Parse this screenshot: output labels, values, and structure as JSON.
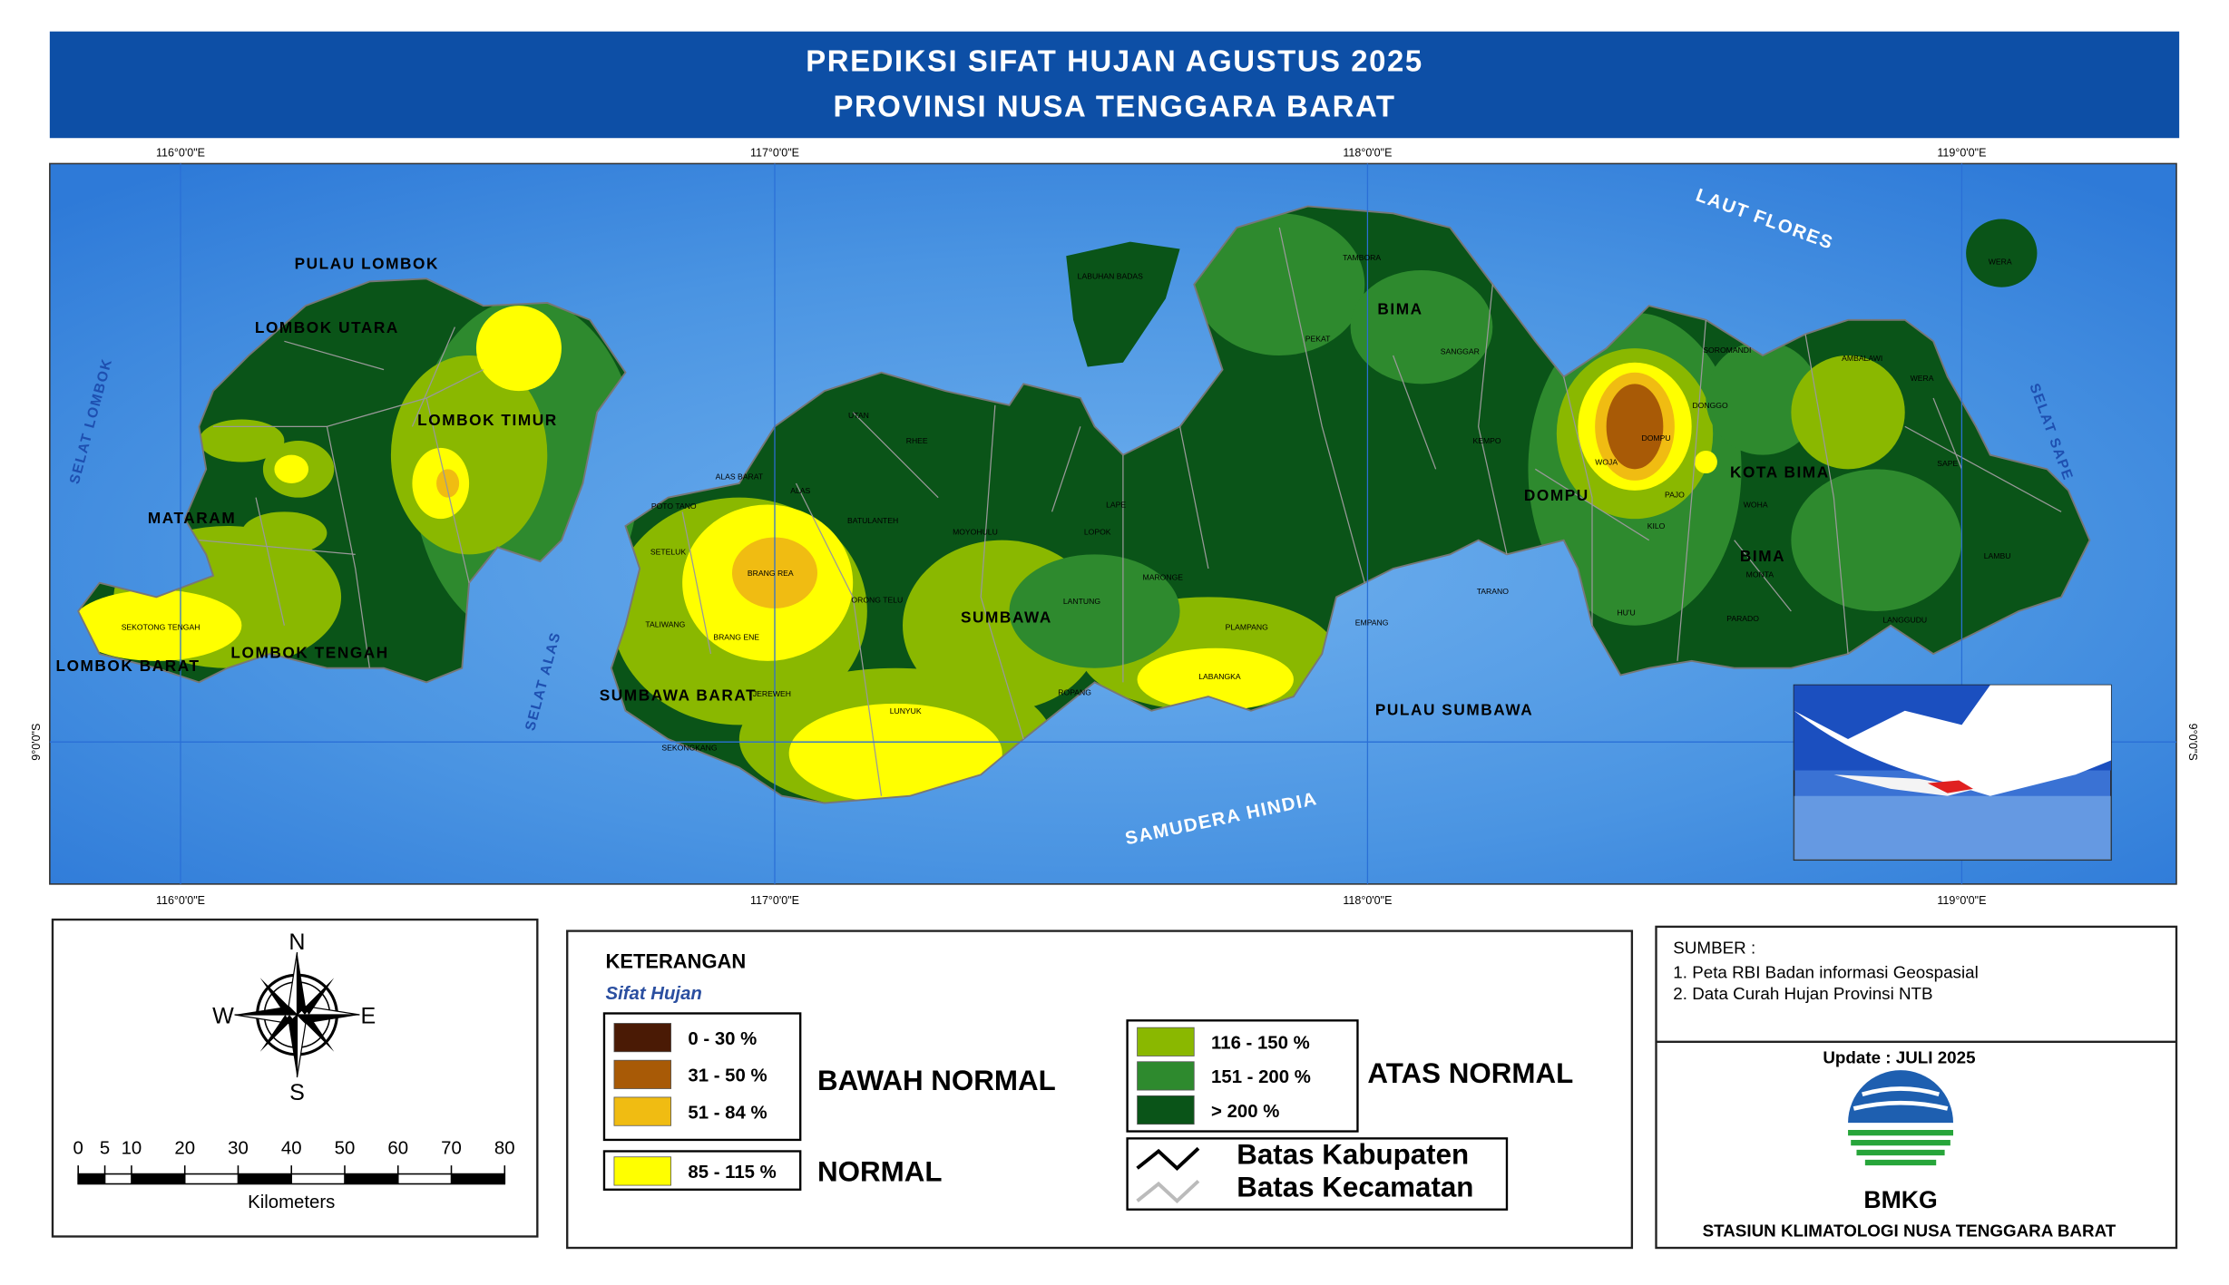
{
  "header": {
    "title_line_1": "PREDIKSI SIFAT HUJAN AGUSTUS 2025",
    "title_line_2": "PROVINSI NUSA TENGGARA BARAT"
  },
  "map": {
    "longitude_labels": [
      "116°0'0\"E",
      "117°0'0\"E",
      "118°0'0\"E",
      "119°0'0\"E"
    ],
    "latitude_label": "9°0'0\"S",
    "places": [
      "PULAU LOMBOK",
      "LOMBOK UTARA",
      "LOMBOK TIMUR",
      "MATARAM",
      "LOMBOK TENGAH",
      "LOMBOK BARAT",
      "SELAT LOMBOK",
      "SELAT ALAS",
      "SUMBAWA BARAT",
      "SUMBAWA",
      "PULAU SUMBAWA",
      "SAMUDERA HINDIA",
      "LAUT FLORES",
      "BIMA",
      "DOMPU",
      "KOTA BIMA",
      "BIMA",
      "SELAT SAPE",
      "SEKOTONG TENGAH",
      "BRANG REA",
      "BRANG ENE",
      "LUNYUK",
      "TALIWANG",
      "SETELUK",
      "POTO TANO",
      "ALAS",
      "ALAS BARAT",
      "UTAN",
      "RHEE",
      "BATULANTEH",
      "ORONG TELU",
      "MOYOHULU",
      "LANTUNG",
      "ROPANG",
      "PLAMPANG",
      "TARANO",
      "EMPANG",
      "LABANGKA",
      "SEKONGKANG",
      "JEREWEH",
      "KEMPO",
      "WOJA",
      "DOMPU",
      "HU'U",
      "PEKAT",
      "TAMBORA",
      "SANGGAR",
      "KILO",
      "DONGGO",
      "SOROMANDI",
      "WERA",
      "AMBALAWI",
      "SAPE",
      "LAMBU",
      "LANGGUDU",
      "PARADO",
      "MONTA",
      "WOHA",
      "PAJO",
      "LABUHAN BADAS",
      "LAPE",
      "LOPOK",
      "MARONGE",
      "WERA"
    ]
  },
  "compass": {
    "north": "N",
    "south": "S",
    "east": "E",
    "west": "W"
  },
  "scale_bar": {
    "ticks": [
      0,
      5,
      10,
      20,
      30,
      40,
      50,
      60,
      70,
      80
    ],
    "unit": "Kilometers"
  },
  "legend": {
    "title": "KETERANGAN",
    "subtitle": "Sifat Hujan",
    "classes": [
      {
        "label": "0 - 30 %",
        "color": "#4a1a05"
      },
      {
        "label": "31 - 50 %",
        "color": "#a85a06"
      },
      {
        "label": "51 - 84 %",
        "color": "#f0bc12"
      },
      {
        "label": "85 - 115 %",
        "color": "#ffff00"
      },
      {
        "label": "116 - 150 %",
        "color": "#8ab800"
      },
      {
        "label": "151 - 200 %",
        "color": "#2e8a2e"
      },
      {
        "label": "> 200 %",
        "color": "#0a5418"
      }
    ],
    "groups": {
      "below": "BAWAH NORMAL",
      "normal": "NORMAL",
      "above": "ATAS NORMAL"
    },
    "boundaries": [
      "Batas Kabupaten",
      "Batas Kecamatan"
    ]
  },
  "source": {
    "heading": "SUMBER :",
    "items": [
      "1. Peta RBI Badan informasi Geospasial",
      "2. Data Curah Hujan Provinsi NTB"
    ],
    "update": "Update : JULI 2025",
    "logo_text": "BMKG",
    "station": "STASIUN KLIMATOLOGI NUSA TENGGARA BARAT"
  }
}
